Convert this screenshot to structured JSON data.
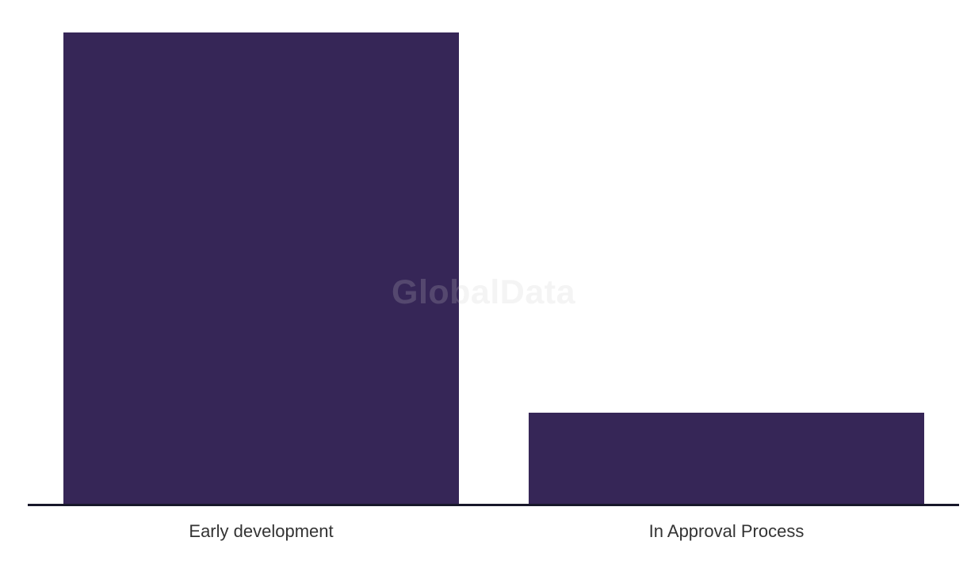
{
  "chart_data": {
    "type": "bar",
    "title": "",
    "xlabel": "",
    "ylabel": "",
    "categories": [
      "Early development",
      "In Approval Process"
    ],
    "values": [
      100,
      19.5
    ],
    "value_unit": "percent of tallest bar (chart shows no value axis, gridlines or data labels)",
    "ylim": [
      0,
      100
    ],
    "grid": false,
    "legend": false,
    "bar_color": "#362657",
    "axis_line_color": "#18182a",
    "tick_label_color": "#333333"
  },
  "watermark": {
    "text": "GlobalData",
    "color": "rgba(202,202,202,0.21)"
  }
}
